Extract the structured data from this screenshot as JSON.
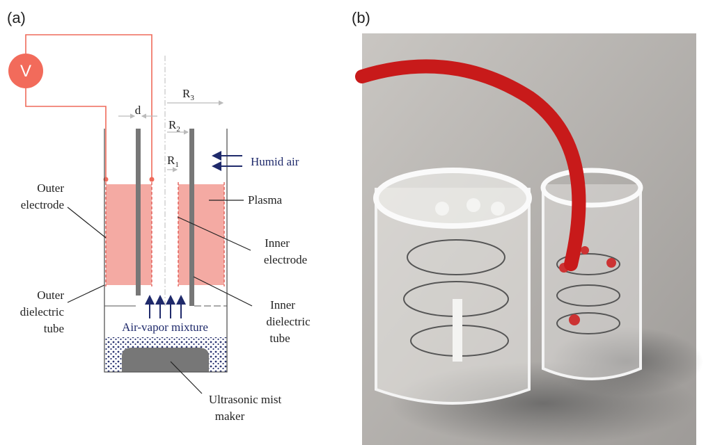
{
  "panels": {
    "a": "(a)",
    "b": "(b)"
  },
  "voltmeter": "V",
  "dimensions": {
    "d": "d",
    "r3": {
      "base": "R",
      "sub": "3"
    },
    "r2": {
      "base": "R",
      "sub": "2"
    },
    "r1": {
      "base": "R",
      "sub": "1"
    }
  },
  "labels": {
    "humid_air": "Humid air",
    "air_vapor": "Air-vapor mixture",
    "outer_electrode": [
      "Outer",
      "electrode"
    ],
    "outer_dielectric": [
      "Outer",
      "dielectric",
      "tube"
    ],
    "plasma": "Plasma",
    "inner_electrode": [
      "Inner",
      "electrode"
    ],
    "inner_dielectric": [
      "Inner",
      "dielectric",
      "tube"
    ],
    "mist_maker": [
      "Ultrasonic mist",
      "maker"
    ]
  }
}
